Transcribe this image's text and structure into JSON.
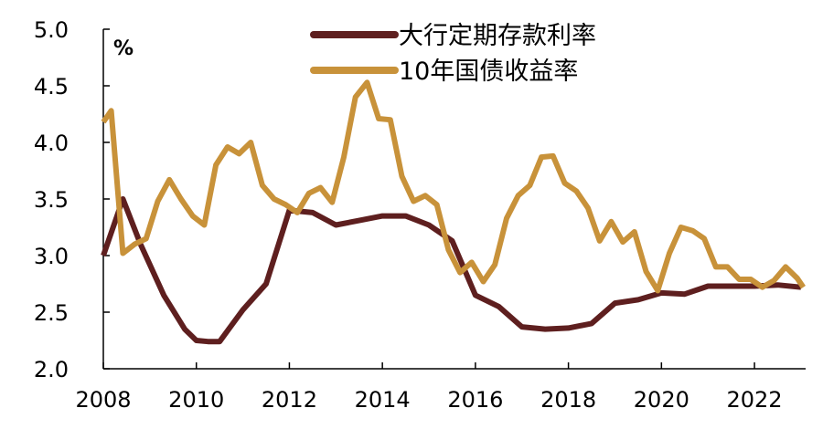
{
  "chart_data": {
    "type": "line",
    "title": "",
    "xlabel": "",
    "ylabel": "",
    "unit_label": "%",
    "xlim": [
      2008,
      2023.1
    ],
    "ylim": [
      2.0,
      5.0
    ],
    "x_ticks": [
      2008,
      2010,
      2012,
      2014,
      2016,
      2018,
      2020,
      2022
    ],
    "x_tick_labels": [
      "2008",
      "2010",
      "2012",
      "2014",
      "2016",
      "2018",
      "2020",
      "2022"
    ],
    "y_ticks": [
      2.0,
      2.5,
      3.0,
      3.5,
      4.0,
      4.5,
      5.0
    ],
    "y_tick_labels": [
      "2.0",
      "2.5",
      "3.0",
      "3.5",
      "4.0",
      "4.5",
      "5.0"
    ],
    "grid": false,
    "legend_position": "top-center",
    "series": [
      {
        "name": "大行定期存款利率",
        "color": "#5e1f1f",
        "x": [
          2008.0,
          2008.42,
          2008.8,
          2009.3,
          2009.75,
          2010.0,
          2010.25,
          2010.5,
          2011.0,
          2011.5,
          2012.0,
          2012.5,
          2013.0,
          2013.5,
          2014.0,
          2014.5,
          2015.0,
          2015.5,
          2016.0,
          2016.5,
          2017.0,
          2017.5,
          2018.0,
          2018.5,
          2019.0,
          2019.5,
          2020.0,
          2020.5,
          2021.0,
          2021.5,
          2022.0,
          2022.5,
          2023.0
        ],
        "values": [
          3.0,
          3.5,
          3.1,
          2.65,
          2.35,
          2.25,
          2.24,
          2.24,
          2.52,
          2.75,
          3.4,
          3.38,
          3.27,
          3.31,
          3.35,
          3.35,
          3.27,
          3.13,
          2.65,
          2.55,
          2.37,
          2.35,
          2.36,
          2.4,
          2.58,
          2.61,
          2.67,
          2.66,
          2.73,
          2.73,
          2.73,
          2.74,
          2.72
        ]
      },
      {
        "name": "10年国债收益率",
        "color": "#c8923a",
        "x": [
          2008.0,
          2008.17,
          2008.42,
          2008.67,
          2008.92,
          2009.17,
          2009.42,
          2009.67,
          2009.92,
          2010.17,
          2010.42,
          2010.67,
          2010.92,
          2011.17,
          2011.42,
          2011.67,
          2011.92,
          2012.17,
          2012.42,
          2012.67,
          2012.92,
          2013.17,
          2013.42,
          2013.67,
          2013.92,
          2014.17,
          2014.42,
          2014.67,
          2014.92,
          2015.17,
          2015.42,
          2015.67,
          2015.92,
          2016.17,
          2016.42,
          2016.67,
          2016.92,
          2017.17,
          2017.42,
          2017.67,
          2017.92,
          2018.17,
          2018.42,
          2018.67,
          2018.92,
          2019.17,
          2019.42,
          2019.67,
          2019.92,
          2020.17,
          2020.42,
          2020.67,
          2020.92,
          2021.17,
          2021.42,
          2021.67,
          2021.92,
          2022.17,
          2022.42,
          2022.67,
          2022.92,
          2023.05
        ],
        "values": [
          4.18,
          4.28,
          3.02,
          3.1,
          3.15,
          3.48,
          3.67,
          3.5,
          3.35,
          3.27,
          3.8,
          3.96,
          3.9,
          4.0,
          3.62,
          3.5,
          3.45,
          3.38,
          3.55,
          3.6,
          3.47,
          3.87,
          4.4,
          4.53,
          4.21,
          4.2,
          3.7,
          3.48,
          3.53,
          3.45,
          3.05,
          2.85,
          2.94,
          2.77,
          2.92,
          3.33,
          3.53,
          3.62,
          3.87,
          3.88,
          3.64,
          3.57,
          3.42,
          3.13,
          3.3,
          3.12,
          3.21,
          2.86,
          2.69,
          3.02,
          3.25,
          3.22,
          3.15,
          2.9,
          2.9,
          2.79,
          2.79,
          2.72,
          2.78,
          2.9,
          2.8,
          2.72
        ]
      }
    ]
  }
}
